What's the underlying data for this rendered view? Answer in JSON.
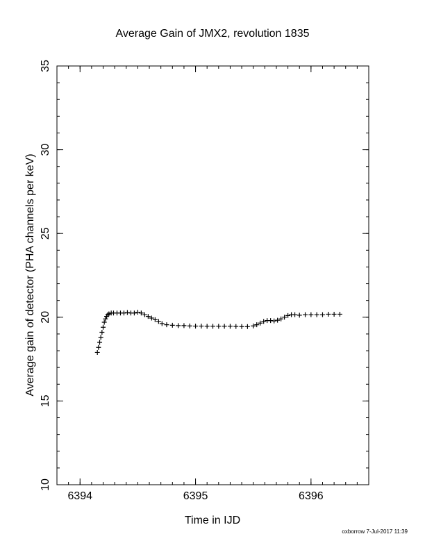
{
  "chart_data": {
    "type": "scatter",
    "title": "Average Gain of JMX2, revolution 1835",
    "xlabel": "Time in IJD",
    "ylabel": "Average gain of detector (PHA channels per keV)",
    "xlim": [
      6393.8,
      6396.5
    ],
    "ylim": [
      10,
      35
    ],
    "xticks": [
      6394,
      6395,
      6396
    ],
    "xtick_labels": [
      "6394",
      "6395",
      "6396"
    ],
    "yticks": [
      10,
      15,
      20,
      25,
      30,
      35
    ],
    "ytick_labels": [
      "10",
      "15",
      "20",
      "25",
      "30",
      "35"
    ],
    "x_minor_step": 0.1,
    "y_minor_step": 1,
    "grid": false,
    "legend": "none",
    "marker": "plus",
    "color": "#000000",
    "series": [
      {
        "x": [
          6394.15,
          6394.16,
          6394.17,
          6394.18,
          6394.19,
          6394.2,
          6394.21,
          6394.22,
          6394.23,
          6394.24,
          6394.25,
          6394.27,
          6394.29,
          6394.32,
          6394.35,
          6394.38,
          6394.41,
          6394.44,
          6394.47,
          6394.5,
          6394.53,
          6394.56,
          6394.59,
          6394.62,
          6394.65,
          6394.68,
          6394.71,
          6394.75,
          6394.8,
          6394.85,
          6394.9,
          6394.95,
          6395.0,
          6395.05,
          6395.1,
          6395.15,
          6395.2,
          6395.25,
          6395.3,
          6395.35,
          6395.4,
          6395.45,
          6395.5,
          6395.53,
          6395.56,
          6395.59,
          6395.62,
          6395.65,
          6395.68,
          6395.71,
          6395.74,
          6395.77,
          6395.8,
          6395.83,
          6395.86,
          6395.9,
          6395.95,
          6396.0,
          6396.05,
          6396.1,
          6396.15,
          6396.2,
          6396.25
        ],
        "y": [
          17.9,
          18.2,
          18.5,
          18.8,
          19.1,
          19.4,
          19.7,
          19.9,
          20.05,
          20.15,
          20.2,
          20.25,
          20.25,
          20.25,
          20.25,
          20.25,
          20.28,
          20.25,
          20.25,
          20.3,
          20.25,
          20.15,
          20.05,
          19.95,
          19.85,
          19.75,
          19.62,
          19.55,
          19.52,
          19.5,
          19.5,
          19.48,
          19.47,
          19.47,
          19.46,
          19.46,
          19.46,
          19.46,
          19.46,
          19.45,
          19.44,
          19.44,
          19.48,
          19.55,
          19.65,
          19.75,
          19.8,
          19.8,
          19.78,
          19.82,
          19.9,
          20.0,
          20.1,
          20.15,
          20.15,
          20.12,
          20.15,
          20.15,
          20.15,
          20.15,
          20.18,
          20.18,
          20.18
        ]
      }
    ]
  },
  "footer": {
    "credit": "oxborrow  7-Jul-2017 11:39"
  }
}
